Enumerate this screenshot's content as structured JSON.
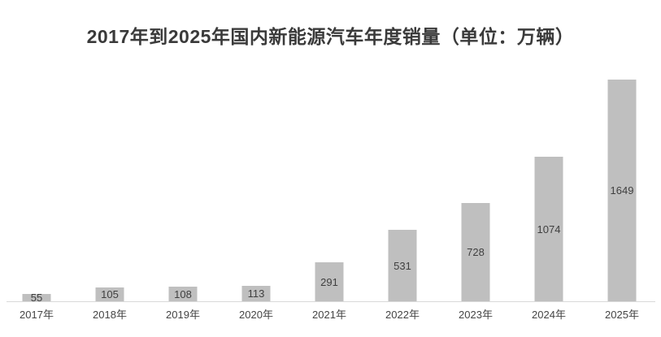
{
  "chart_data": {
    "type": "bar",
    "title": "2017年到2025年国内新能源汽车年度销量（单位：万辆）",
    "categories": [
      "2017年",
      "2018年",
      "2019年",
      "2020年",
      "2021年",
      "2022年",
      "2023年",
      "2024年",
      "2025年"
    ],
    "values": [
      55,
      105,
      108,
      113,
      291,
      531,
      728,
      1074,
      1649
    ],
    "series_name": "年度销量",
    "unit": "万辆",
    "xlabel": "",
    "ylabel": "",
    "ylim": [
      0,
      1700
    ],
    "grid": false,
    "legend_position": "none",
    "data_label_position": "inside-center",
    "colors": {
      "bar_fill": "#bfbfbf",
      "data_label": "#3f3f3f",
      "axis_label": "#444444",
      "axis_line": "#d9d9d9",
      "title": "#3a3a3a",
      "background": "#ffffff"
    }
  }
}
